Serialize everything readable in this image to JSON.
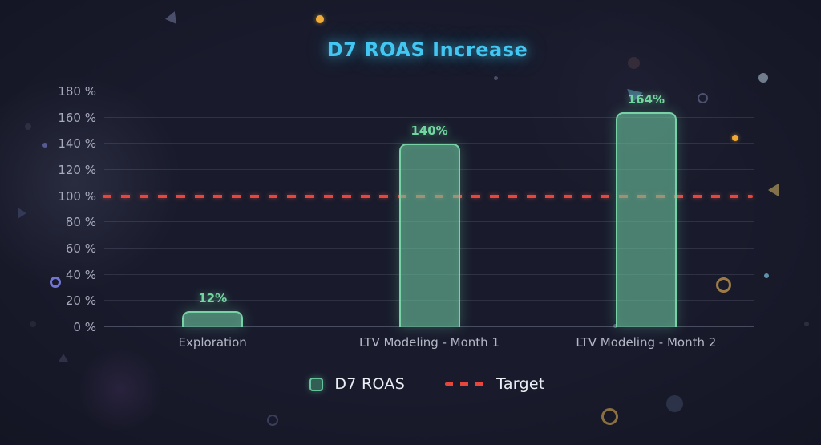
{
  "chart_data": {
    "type": "bar",
    "title": "D7 ROAS Increase",
    "categories": [
      "Exploration",
      "LTV Modeling - Month 1",
      "LTV Modeling - Month 2"
    ],
    "values": [
      12,
      140,
      164
    ],
    "value_labels": [
      "12%",
      "140%",
      "164%"
    ],
    "series": [
      {
        "name": "D7 ROAS",
        "values": [
          12,
          140,
          164
        ]
      }
    ],
    "xlabel": "",
    "ylabel": "",
    "ylim": [
      0,
      180
    ],
    "grid": true,
    "legend_position": "bottom",
    "yticks": [
      {
        "value": 0,
        "label": "0 %"
      },
      {
        "value": 20,
        "label": "20 %"
      },
      {
        "value": 40,
        "label": "40 %"
      },
      {
        "value": 60,
        "label": "60 %"
      },
      {
        "value": 80,
        "label": "80 %"
      },
      {
        "value": 100,
        "label": "100 %"
      },
      {
        "value": 120,
        "label": "120 %"
      },
      {
        "value": 140,
        "label": "140 %"
      },
      {
        "value": 160,
        "label": "160 %"
      },
      {
        "value": 180,
        "label": "180 %"
      }
    ],
    "target_line": {
      "value": 100,
      "label": "Target",
      "style": "dashed"
    }
  },
  "legend": {
    "series_label": "D7 ROAS",
    "target_label": "Target"
  },
  "colors": {
    "background": "#191b2c",
    "title": "#41c7f2",
    "bar_fill": "rgba(108,196,158,0.60)",
    "bar_border": "#79d2a5",
    "value_label": "#72d6a0",
    "target": "#e8453c",
    "axis_text": "#a8abbd",
    "axis_text_x": "#b4b7c6",
    "grid": "rgba(165,170,195,0.16)"
  }
}
